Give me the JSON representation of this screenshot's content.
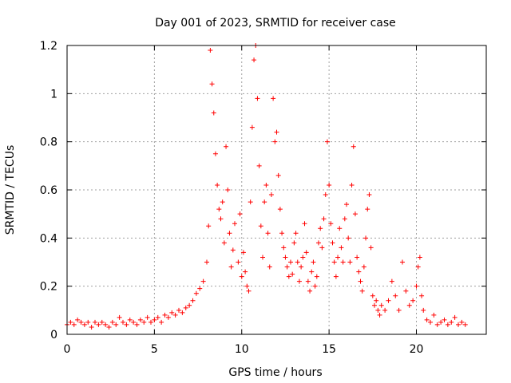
{
  "chart_data": {
    "type": "scatter",
    "title": "Day 001 of 2023, SRMTID for receiver case",
    "xlabel": "GPS time / hours",
    "ylabel": "SRMTID / TECUs",
    "xlim": [
      0,
      24
    ],
    "ylim": [
      0,
      1.2
    ],
    "xticks": [
      0,
      5,
      10,
      15,
      20
    ],
    "xtick_labels": [
      "0",
      "5",
      "10",
      "15",
      "20"
    ],
    "yticks": [
      0,
      0.2,
      0.4,
      0.6,
      0.8,
      1,
      1.2
    ],
    "ytick_labels": [
      "0",
      "0.2",
      "0.4",
      "0.6",
      "0.8",
      "1",
      "1.2"
    ],
    "grid": true,
    "marker": "plus",
    "series": [
      {
        "name": "SRMTID",
        "color": "#ff0000",
        "points": [
          [
            0.0,
            0.04
          ],
          [
            0.2,
            0.05
          ],
          [
            0.4,
            0.04
          ],
          [
            0.6,
            0.06
          ],
          [
            0.8,
            0.05
          ],
          [
            1.0,
            0.04
          ],
          [
            1.2,
            0.05
          ],
          [
            1.4,
            0.03
          ],
          [
            1.6,
            0.05
          ],
          [
            1.8,
            0.04
          ],
          [
            2.0,
            0.05
          ],
          [
            2.2,
            0.04
          ],
          [
            2.4,
            0.03
          ],
          [
            2.6,
            0.05
          ],
          [
            2.8,
            0.04
          ],
          [
            3.0,
            0.07
          ],
          [
            3.2,
            0.05
          ],
          [
            3.4,
            0.04
          ],
          [
            3.6,
            0.06
          ],
          [
            3.8,
            0.05
          ],
          [
            4.0,
            0.04
          ],
          [
            4.2,
            0.06
          ],
          [
            4.4,
            0.05
          ],
          [
            4.6,
            0.07
          ],
          [
            4.8,
            0.05
          ],
          [
            5.0,
            0.06
          ],
          [
            5.2,
            0.07
          ],
          [
            5.4,
            0.05
          ],
          [
            5.6,
            0.08
          ],
          [
            5.8,
            0.07
          ],
          [
            6.0,
            0.09
          ],
          [
            6.2,
            0.08
          ],
          [
            6.4,
            0.1
          ],
          [
            6.6,
            0.09
          ],
          [
            6.8,
            0.11
          ],
          [
            7.0,
            0.12
          ],
          [
            7.2,
            0.14
          ],
          [
            7.4,
            0.17
          ],
          [
            7.6,
            0.19
          ],
          [
            7.8,
            0.22
          ],
          [
            8.0,
            0.3
          ],
          [
            8.1,
            0.45
          ],
          [
            8.2,
            1.18
          ],
          [
            8.3,
            1.04
          ],
          [
            8.4,
            0.92
          ],
          [
            8.5,
            0.75
          ],
          [
            8.6,
            0.62
          ],
          [
            8.7,
            0.52
          ],
          [
            8.8,
            0.48
          ],
          [
            8.9,
            0.55
          ],
          [
            9.0,
            0.38
          ],
          [
            9.1,
            0.78
          ],
          [
            9.2,
            0.6
          ],
          [
            9.3,
            0.42
          ],
          [
            9.4,
            0.28
          ],
          [
            9.5,
            0.35
          ],
          [
            9.6,
            0.46
          ],
          [
            9.8,
            0.3
          ],
          [
            9.9,
            0.5
          ],
          [
            10.0,
            0.24
          ],
          [
            10.1,
            0.34
          ],
          [
            10.2,
            0.26
          ],
          [
            10.3,
            0.2
          ],
          [
            10.4,
            0.18
          ],
          [
            10.5,
            0.55
          ],
          [
            10.6,
            0.86
          ],
          [
            10.7,
            1.14
          ],
          [
            10.8,
            1.2
          ],
          [
            10.9,
            0.98
          ],
          [
            11.0,
            0.7
          ],
          [
            11.1,
            0.45
          ],
          [
            11.2,
            0.32
          ],
          [
            11.3,
            0.55
          ],
          [
            11.4,
            0.62
          ],
          [
            11.5,
            0.42
          ],
          [
            11.6,
            0.28
          ],
          [
            11.7,
            0.58
          ],
          [
            11.8,
            0.98
          ],
          [
            11.9,
            0.8
          ],
          [
            12.0,
            0.84
          ],
          [
            12.1,
            0.66
          ],
          [
            12.2,
            0.52
          ],
          [
            12.3,
            0.42
          ],
          [
            12.4,
            0.36
          ],
          [
            12.5,
            0.32
          ],
          [
            12.6,
            0.28
          ],
          [
            12.7,
            0.24
          ],
          [
            12.8,
            0.3
          ],
          [
            12.9,
            0.25
          ],
          [
            13.0,
            0.38
          ],
          [
            13.1,
            0.42
          ],
          [
            13.2,
            0.3
          ],
          [
            13.3,
            0.22
          ],
          [
            13.4,
            0.28
          ],
          [
            13.5,
            0.32
          ],
          [
            13.6,
            0.46
          ],
          [
            13.7,
            0.34
          ],
          [
            13.8,
            0.22
          ],
          [
            13.9,
            0.18
          ],
          [
            14.0,
            0.26
          ],
          [
            14.1,
            0.3
          ],
          [
            14.2,
            0.2
          ],
          [
            14.3,
            0.24
          ],
          [
            14.4,
            0.38
          ],
          [
            14.5,
            0.44
          ],
          [
            14.6,
            0.36
          ],
          [
            14.7,
            0.48
          ],
          [
            14.8,
            0.58
          ],
          [
            14.9,
            0.8
          ],
          [
            15.0,
            0.62
          ],
          [
            15.1,
            0.46
          ],
          [
            15.2,
            0.38
          ],
          [
            15.3,
            0.3
          ],
          [
            15.4,
            0.24
          ],
          [
            15.5,
            0.32
          ],
          [
            15.6,
            0.44
          ],
          [
            15.7,
            0.36
          ],
          [
            15.8,
            0.3
          ],
          [
            15.9,
            0.48
          ],
          [
            16.0,
            0.54
          ],
          [
            16.1,
            0.4
          ],
          [
            16.2,
            0.3
          ],
          [
            16.3,
            0.62
          ],
          [
            16.4,
            0.78
          ],
          [
            16.5,
            0.5
          ],
          [
            16.6,
            0.32
          ],
          [
            16.7,
            0.26
          ],
          [
            16.8,
            0.22
          ],
          [
            16.9,
            0.18
          ],
          [
            17.0,
            0.28
          ],
          [
            17.1,
            0.4
          ],
          [
            17.2,
            0.52
          ],
          [
            17.3,
            0.58
          ],
          [
            17.4,
            0.36
          ],
          [
            17.5,
            0.16
          ],
          [
            17.6,
            0.12
          ],
          [
            17.7,
            0.14
          ],
          [
            17.8,
            0.1
          ],
          [
            17.9,
            0.08
          ],
          [
            18.0,
            0.12
          ],
          [
            18.2,
            0.1
          ],
          [
            18.4,
            0.14
          ],
          [
            18.6,
            0.22
          ],
          [
            18.8,
            0.16
          ],
          [
            19.0,
            0.1
          ],
          [
            19.2,
            0.3
          ],
          [
            19.4,
            0.18
          ],
          [
            19.6,
            0.12
          ],
          [
            19.8,
            0.14
          ],
          [
            20.0,
            0.2
          ],
          [
            20.1,
            0.28
          ],
          [
            20.2,
            0.32
          ],
          [
            20.3,
            0.16
          ],
          [
            20.4,
            0.1
          ],
          [
            20.6,
            0.06
          ],
          [
            20.8,
            0.05
          ],
          [
            21.0,
            0.08
          ],
          [
            21.2,
            0.04
          ],
          [
            21.4,
            0.05
          ],
          [
            21.6,
            0.06
          ],
          [
            21.8,
            0.04
          ],
          [
            22.0,
            0.05
          ],
          [
            22.2,
            0.07
          ],
          [
            22.4,
            0.04
          ],
          [
            22.6,
            0.05
          ],
          [
            22.8,
            0.04
          ]
        ]
      }
    ]
  }
}
